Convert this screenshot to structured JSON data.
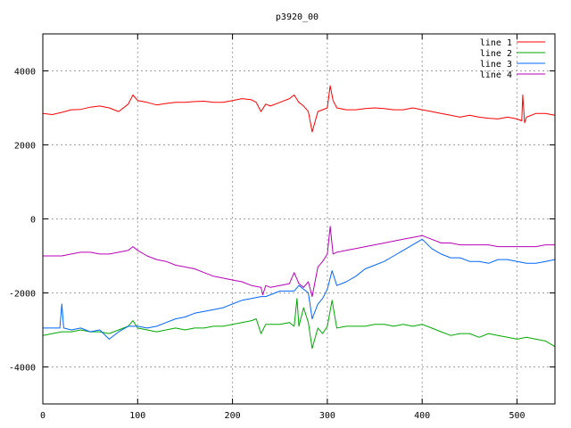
{
  "chart_data": {
    "type": "line",
    "title": "p3920_00",
    "xlim": [
      0,
      540
    ],
    "ylim": [
      -5000,
      5000
    ],
    "x_ticks": [
      0,
      100,
      200,
      300,
      400,
      500
    ],
    "y_ticks": [
      -4000,
      -2000,
      0,
      2000,
      4000
    ],
    "grid": true,
    "legend_position": "top-right",
    "series": [
      {
        "name": "line 1",
        "color": "#ff0000",
        "x": [
          0,
          10,
          20,
          30,
          40,
          50,
          60,
          70,
          80,
          90,
          95,
          100,
          110,
          120,
          130,
          140,
          150,
          160,
          170,
          180,
          190,
          200,
          210,
          220,
          225,
          230,
          235,
          240,
          250,
          260,
          265,
          270,
          275,
          280,
          284,
          290,
          295,
          300,
          303,
          306,
          310,
          320,
          330,
          340,
          350,
          360,
          370,
          380,
          390,
          400,
          410,
          420,
          430,
          440,
          450,
          460,
          470,
          480,
          490,
          500,
          505,
          506,
          508,
          510,
          520,
          530,
          540
        ],
        "y": [
          2850,
          2820,
          2880,
          2950,
          2960,
          3020,
          3050,
          3000,
          2900,
          3100,
          3350,
          3200,
          3150,
          3080,
          3120,
          3150,
          3150,
          3170,
          3180,
          3150,
          3150,
          3200,
          3250,
          3220,
          3150,
          2900,
          3100,
          3050,
          3150,
          3250,
          3350,
          3150,
          3050,
          2900,
          2350,
          2900,
          2950,
          3000,
          3600,
          3200,
          3000,
          2950,
          2950,
          2980,
          3000,
          2980,
          2950,
          2950,
          3000,
          2950,
          2900,
          2850,
          2800,
          2750,
          2800,
          2750,
          2720,
          2700,
          2750,
          2700,
          2650,
          3350,
          2600,
          2750,
          2850,
          2850,
          2800
        ]
      },
      {
        "name": "line 2",
        "color": "#00aa00",
        "x": [
          0,
          10,
          20,
          30,
          40,
          50,
          60,
          70,
          80,
          90,
          95,
          100,
          110,
          120,
          130,
          140,
          150,
          160,
          170,
          180,
          190,
          200,
          210,
          220,
          225,
          230,
          235,
          240,
          250,
          260,
          265,
          268,
          270,
          275,
          280,
          284,
          290,
          295,
          300,
          305,
          310,
          320,
          330,
          340,
          350,
          360,
          370,
          380,
          390,
          400,
          410,
          420,
          430,
          440,
          450,
          460,
          470,
          480,
          490,
          500,
          510,
          520,
          530,
          540
        ],
        "y": [
          -3150,
          -3100,
          -3050,
          -3050,
          -3000,
          -3050,
          -3050,
          -3100,
          -3000,
          -2900,
          -2750,
          -2950,
          -3000,
          -3050,
          -3000,
          -2950,
          -3000,
          -2950,
          -2950,
          -2900,
          -2900,
          -2850,
          -2800,
          -2750,
          -2700,
          -3100,
          -2850,
          -2850,
          -2850,
          -2800,
          -2900,
          -2150,
          -2900,
          -2400,
          -2800,
          -3500,
          -2950,
          -3100,
          -2900,
          -2200,
          -2950,
          -2900,
          -2900,
          -2900,
          -2850,
          -2850,
          -2900,
          -2850,
          -2900,
          -2850,
          -2950,
          -3050,
          -3150,
          -3100,
          -3100,
          -3200,
          -3100,
          -3150,
          -3200,
          -3250,
          -3200,
          -3250,
          -3300,
          -3450
        ]
      },
      {
        "name": "line 3",
        "color": "#0066ff",
        "x": [
          0,
          10,
          18,
          20,
          22,
          30,
          40,
          50,
          60,
          70,
          80,
          90,
          100,
          110,
          120,
          130,
          140,
          150,
          160,
          170,
          180,
          190,
          200,
          210,
          220,
          230,
          235,
          240,
          250,
          260,
          265,
          270,
          275,
          280,
          284,
          290,
          295,
          300,
          305,
          310,
          320,
          330,
          340,
          350,
          360,
          370,
          380,
          390,
          400,
          410,
          420,
          430,
          440,
          450,
          460,
          470,
          480,
          490,
          500,
          510,
          520,
          530,
          540
        ],
        "y": [
          -2950,
          -2950,
          -2950,
          -2300,
          -2950,
          -3000,
          -2950,
          -3050,
          -3000,
          -3250,
          -3050,
          -2900,
          -2900,
          -2950,
          -2900,
          -2800,
          -2700,
          -2650,
          -2550,
          -2500,
          -2450,
          -2400,
          -2300,
          -2200,
          -2150,
          -2100,
          -2100,
          -2050,
          -1950,
          -1950,
          -1950,
          -1800,
          -1900,
          -2000,
          -2700,
          -2300,
          -2150,
          -1900,
          -1400,
          -1800,
          -1700,
          -1550,
          -1350,
          -1250,
          -1150,
          -1000,
          -850,
          -700,
          -550,
          -800,
          -950,
          -1050,
          -1050,
          -1150,
          -1150,
          -1200,
          -1100,
          -1100,
          -1150,
          -1200,
          -1200,
          -1150,
          -1100
        ]
      },
      {
        "name": "line 4",
        "color": "#bb00bb",
        "x": [
          0,
          10,
          20,
          30,
          40,
          50,
          60,
          70,
          80,
          90,
          95,
          100,
          110,
          120,
          130,
          140,
          150,
          160,
          170,
          180,
          190,
          200,
          210,
          220,
          230,
          232,
          235,
          240,
          250,
          260,
          265,
          270,
          275,
          280,
          284,
          290,
          295,
          300,
          303,
          306,
          310,
          320,
          330,
          340,
          350,
          360,
          370,
          380,
          390,
          400,
          410,
          420,
          430,
          440,
          450,
          460,
          470,
          480,
          490,
          500,
          510,
          520,
          530,
          540
        ],
        "y": [
          -1000,
          -1000,
          -1000,
          -950,
          -900,
          -900,
          -950,
          -950,
          -900,
          -850,
          -750,
          -850,
          -1000,
          -1100,
          -1150,
          -1250,
          -1300,
          -1350,
          -1450,
          -1550,
          -1600,
          -1650,
          -1700,
          -1800,
          -1850,
          -2050,
          -1800,
          -1850,
          -1800,
          -1750,
          -1450,
          -1750,
          -1850,
          -1700,
          -2100,
          -1300,
          -1150,
          -950,
          -200,
          -950,
          -900,
          -850,
          -800,
          -750,
          -700,
          -650,
          -600,
          -550,
          -500,
          -450,
          -550,
          -650,
          -650,
          -700,
          -700,
          -700,
          -700,
          -750,
          -750,
          -750,
          -750,
          -750,
          -700,
          -700
        ]
      }
    ]
  }
}
